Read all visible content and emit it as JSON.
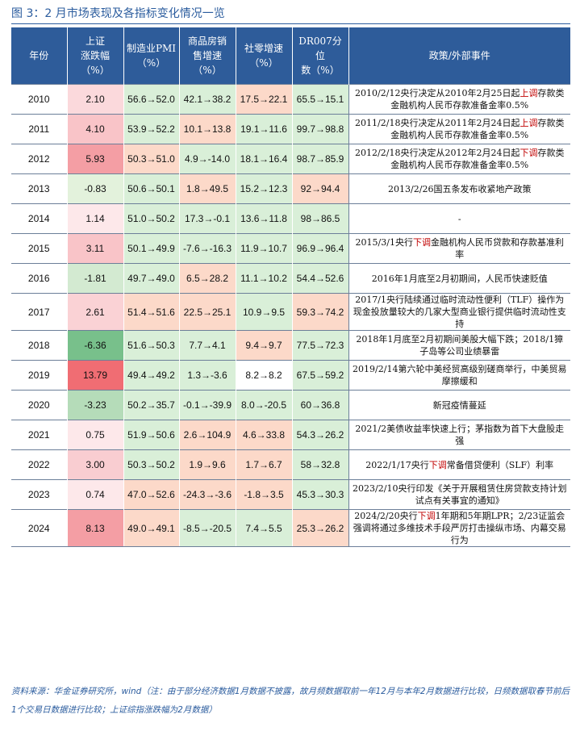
{
  "title": "图 3：2 月市场表现及各指标变化情况一览",
  "headers": {
    "year": "年份",
    "sh": "上证\n涨跌幅\n（%）",
    "pmi": "制造业PMI\n（%）",
    "house": "商品房销\n售增速\n（%）",
    "retail": "社零增速\n（%）",
    "dr007": "DR007分位\n数（%）",
    "policy": "政策/外部事件"
  },
  "rows": [
    {
      "year": "2010",
      "sh": "2.10",
      "pmi": "56.6→52.0",
      "house": "42.1→38.2",
      "retail": "17.5→22.1",
      "dr007": "65.5→15.1",
      "policy_pre": "2010/2/12央行决定从2010年2月25日起",
      "policy_hl": "上调",
      "policy_post": "存款类金融机构人民币存款准备金率0.5%"
    },
    {
      "year": "2011",
      "sh": "4.10",
      "pmi": "53.9→52.2",
      "house": "10.1→13.8",
      "retail": "19.1→11.6",
      "dr007": "99.7→98.8",
      "policy_pre": "2011/2/18央行决定从2011年2月24日起",
      "policy_hl": "上调",
      "policy_post": "存款类金融机构人民币存款准备金率0.5%"
    },
    {
      "year": "2012",
      "sh": "5.93",
      "pmi": "50.3→51.0",
      "house": "4.9→-14.0",
      "retail": "18.1→16.4",
      "dr007": "98.7→85.9",
      "policy_pre": "2012/2/18央行决定从2012年2月24日起",
      "policy_hl": "下调",
      "policy_post": "存款类金融机构人民币存款准备金率0.5%"
    },
    {
      "year": "2013",
      "sh": "-0.83",
      "pmi": "50.6→50.1",
      "house": "1.8→49.5",
      "retail": "15.2→12.3",
      "dr007": "92→94.4",
      "policy_pre": "2013/2/26国五条发布收紧地产政策",
      "policy_hl": "",
      "policy_post": ""
    },
    {
      "year": "2014",
      "sh": "1.14",
      "pmi": "51.0→50.2",
      "house": "17.3→-0.1",
      "retail": "13.6→11.8",
      "dr007": "98→86.5",
      "policy_pre": "-",
      "policy_hl": "",
      "policy_post": ""
    },
    {
      "year": "2015",
      "sh": "3.11",
      "pmi": "50.1→49.9",
      "house": "-7.6→-16.3",
      "retail": "11.9→10.7",
      "dr007": "96.9→96.4",
      "policy_pre": "2015/3/1央行",
      "policy_hl": "下调",
      "policy_post": "金融机构人民币贷款和存款基准利率"
    },
    {
      "year": "2016",
      "sh": "-1.81",
      "pmi": "49.7→49.0",
      "house": "6.5→28.2",
      "retail": "11.1→10.2",
      "dr007": "54.4→52.6",
      "policy_pre": "2016年1月底至2月初期间，人民币快速贬值",
      "policy_hl": "",
      "policy_post": ""
    },
    {
      "year": "2017",
      "sh": "2.61",
      "pmi": "51.4→51.6",
      "house": "22.5→25.1",
      "retail": "10.9→9.5",
      "dr007": "59.3→74.2",
      "policy_pre": "2017/1央行陆续通过临时流动性便利（TLF）操作为现金投放量较大的几家大型商业银行提供临时流动性支持",
      "policy_hl": "",
      "policy_post": ""
    },
    {
      "year": "2018",
      "sh": "-6.36",
      "pmi": "51.6→50.3",
      "house": "7.7→4.1",
      "retail": "9.4→9.7",
      "dr007": "77.5→72.3",
      "policy_pre": "2018年1月底至2月初期间美股大幅下跌；2018/1獐子岛等公司业绩暴雷",
      "policy_hl": "",
      "policy_post": ""
    },
    {
      "year": "2019",
      "sh": "13.79",
      "pmi": "49.4→49.2",
      "house": "1.3→-3.6",
      "retail": "8.2→8.2",
      "dr007": "67.5→59.2",
      "policy_pre": "2019/2/14第六轮中美经贸高级别磋商举行，中美贸易摩擦缓和",
      "policy_hl": "",
      "policy_post": ""
    },
    {
      "year": "2020",
      "sh": "-3.23",
      "pmi": "50.2→35.7",
      "house": "-0.1→-39.9",
      "retail": "8.0→-20.5",
      "dr007": "60→36.8",
      "policy_pre": "新冠疫情蔓延",
      "policy_hl": "",
      "policy_post": ""
    },
    {
      "year": "2021",
      "sh": "0.75",
      "pmi": "51.9→50.6",
      "house": "2.6→104.9",
      "retail": "4.6→33.8",
      "dr007": "54.3→26.2",
      "policy_pre": "2021/2美债收益率快速上行；茅指数为首下大盘股走强",
      "policy_hl": "",
      "policy_post": ""
    },
    {
      "year": "2022",
      "sh": "3.00",
      "pmi": "50.3→50.2",
      "house": "1.9→9.6",
      "retail": "1.7→6.7",
      "dr007": "58→32.8",
      "policy_pre": "2022/1/17央行",
      "policy_hl": "下调",
      "policy_post": "常备借贷便利（SLF）利率"
    },
    {
      "year": "2023",
      "sh": "0.74",
      "pmi": "47.0→52.6",
      "house": "-24.3→-3.6",
      "retail": "-1.8→3.5",
      "dr007": "45.3→30.3",
      "policy_pre": "2023/2/10央行印发《关于开展租赁住房贷款支持计划试点有关事宜的通知》",
      "policy_hl": "",
      "policy_post": ""
    },
    {
      "year": "2024",
      "sh": "8.13",
      "pmi": "49.0→49.1",
      "house": "-8.5→-20.5",
      "retail": "7.4→5.5",
      "dr007": "25.3→26.2",
      "policy_pre": "2024/2/20央行",
      "policy_hl": "下调",
      "policy_post": "1年期和5年期LPR；2/23证监会强调将通过多维技术手段严厉打击操纵市场、内幕交易行为"
    }
  ],
  "colors": {
    "header_bg": "#2e5c9a",
    "red_strong": "#f06d73",
    "red_mid": "#f8a9ae",
    "red_light": "#fbd9dc",
    "green_strong": "#78c08b",
    "green_light": "#d9efd8",
    "salmon": "#fcd9c9",
    "pale_green": "#e3f2dc",
    "white": "#ffffff"
  },
  "cell_colors": {
    "sh": [
      "#fbd9dc",
      "#f9c4c8",
      "#f49ea4",
      "#e3f2dc",
      "#fde8ea",
      "#f9c4c8",
      "#d3ead1",
      "#fad2d5",
      "#78c08b",
      "#f06d73",
      "#b5dcb9",
      "#fde8ea",
      "#f9cdd1",
      "#fde8ea",
      "#f49ea4"
    ],
    "pmi": [
      "#d9efd8",
      "#d9efd8",
      "#fcd9c9",
      "#d9efd8",
      "#d9efd8",
      "#d9efd8",
      "#d9efd8",
      "#fcd9c9",
      "#d9efd8",
      "#d9efd8",
      "#d9efd8",
      "#d9efd8",
      "#d9efd8",
      "#fcd9c9",
      "#fcd9c9"
    ],
    "house": [
      "#d9efd8",
      "#fcd9c9",
      "#d9efd8",
      "#fcd9c9",
      "#d9efd8",
      "#d9efd8",
      "#fcd9c9",
      "#fcd9c9",
      "#d9efd8",
      "#d9efd8",
      "#d9efd8",
      "#fcd9c9",
      "#fcd9c9",
      "#fcd9c9",
      "#d9efd8"
    ],
    "retail": [
      "#fcd9c9",
      "#d9efd8",
      "#d9efd8",
      "#d9efd8",
      "#d9efd8",
      "#d9efd8",
      "#d9efd8",
      "#d9efd8",
      "#fcd9c9",
      "#ffffff",
      "#d9efd8",
      "#fcd9c9",
      "#fcd9c9",
      "#fcd9c9",
      "#d9efd8"
    ],
    "dr007": [
      "#d9efd8",
      "#d9efd8",
      "#d9efd8",
      "#fcd9c9",
      "#d9efd8",
      "#d9efd8",
      "#d9efd8",
      "#fcd9c9",
      "#d9efd8",
      "#d9efd8",
      "#d9efd8",
      "#d9efd8",
      "#d9efd8",
      "#d9efd8",
      "#fcd9c9"
    ]
  },
  "source": "资料来源：华金证券研究所，wind（注：由于部分经济数据1月数据不披露，故月频数据取前一年12月与本年2月数据进行比较，日频数据取春节前后1个交易日数据进行比较；上证综指涨跌幅为2月数据）"
}
